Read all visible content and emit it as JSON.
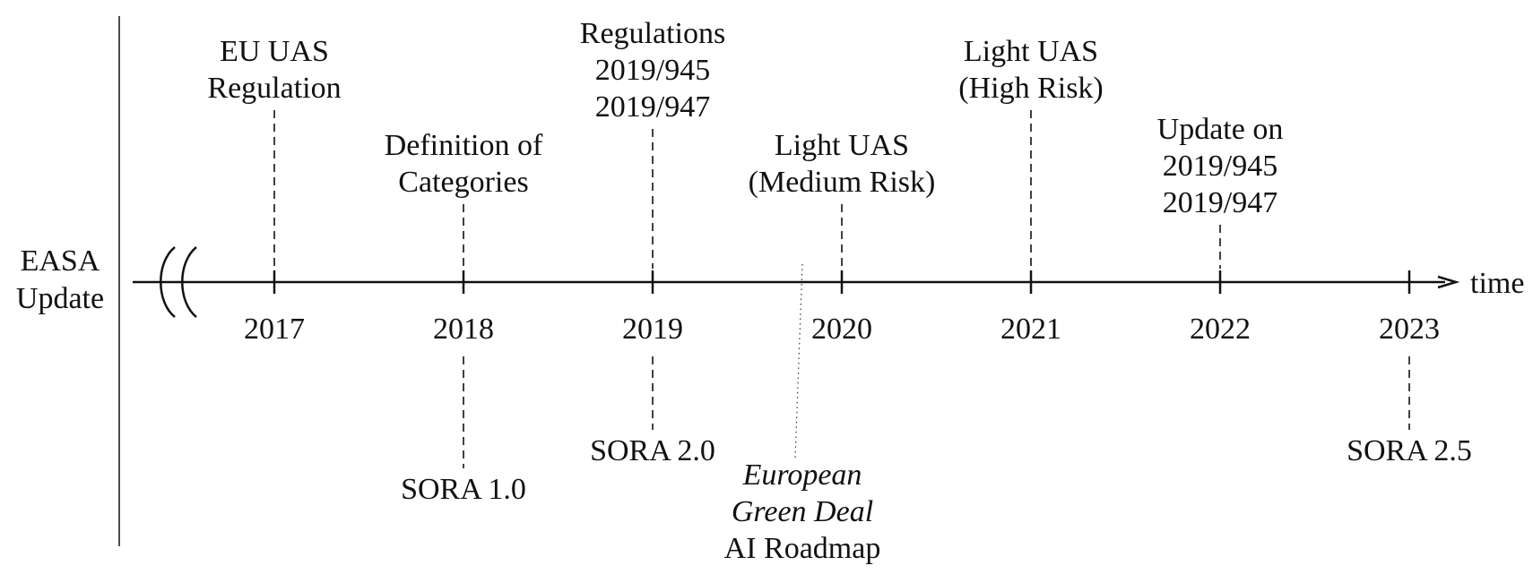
{
  "side_label": [
    "EASA",
    "Update"
  ],
  "axis": {
    "label": "time"
  },
  "years": [
    "2017",
    "2018",
    "2019",
    "2020",
    "2021",
    "2022",
    "2023"
  ],
  "events_above": [
    {
      "year": "2017",
      "lines": [
        "EU UAS",
        "Regulation"
      ]
    },
    {
      "year": "2018",
      "lines": [
        "Definition of",
        "Categories"
      ]
    },
    {
      "year": "2019",
      "lines": [
        "Regulations",
        "2019/945",
        "2019/947"
      ]
    },
    {
      "year": "2020",
      "lines": [
        "Light UAS",
        "(Medium Risk)"
      ]
    },
    {
      "year": "2021",
      "lines": [
        "Light UAS",
        "(High Risk)"
      ]
    },
    {
      "year": "2022",
      "lines": [
        "Update on",
        "2019/945",
        "2019/947"
      ]
    }
  ],
  "events_below": [
    {
      "year": "2018",
      "lines": [
        "SORA 1.0"
      ]
    },
    {
      "year": "2019",
      "lines": [
        "SORA 2.0"
      ]
    },
    {
      "year": "2023",
      "lines": [
        "SORA 2.5"
      ]
    }
  ],
  "milestone": {
    "lines": [
      "European",
      "Green Deal",
      "AI Roadmap"
    ],
    "italic_lines": [
      true,
      true,
      false
    ]
  }
}
